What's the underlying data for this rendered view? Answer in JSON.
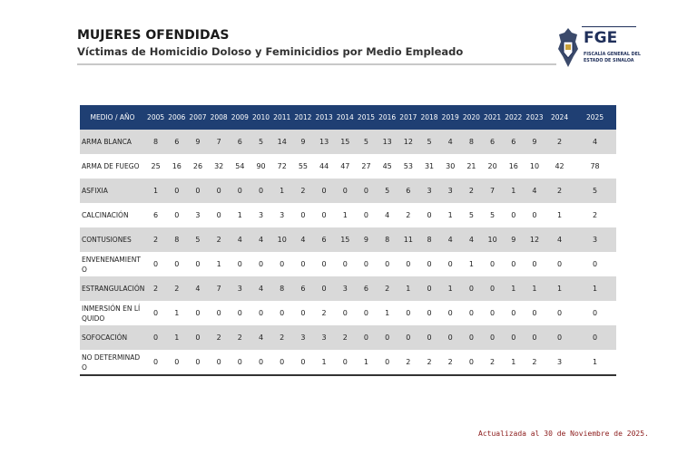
{
  "header": {
    "title": "MUJERES OFENDIDAS",
    "subtitle": "Víctimas de Homicidio Doloso y Feminicidios por Medio Empleado"
  },
  "logo": {
    "acronym": "FGE",
    "line1": "FISCALÍA GENERAL DEL",
    "line2": "ESTADO DE SINALOA"
  },
  "table": {
    "columns": [
      "MEDIO / AÑO",
      "2005",
      "2006",
      "2007",
      "2008",
      "2009",
      "2010",
      "2011",
      "2012",
      "2013",
      "2014",
      "2015",
      "2016",
      "2017",
      "2018",
      "2019",
      "2020",
      "2021",
      "2022",
      "2023",
      "2024",
      "2025"
    ],
    "rows": [
      [
        "ARMA BLANCA",
        8,
        6,
        9,
        7,
        6,
        5,
        14,
        9,
        13,
        15,
        5,
        13,
        12,
        5,
        4,
        8,
        6,
        6,
        9,
        2,
        4
      ],
      [
        "ARMA DE FUEGO",
        25,
        16,
        26,
        32,
        54,
        90,
        72,
        55,
        44,
        47,
        27,
        45,
        53,
        31,
        30,
        21,
        20,
        16,
        10,
        42,
        78
      ],
      [
        "ASFIXIA",
        1,
        0,
        0,
        0,
        0,
        0,
        1,
        2,
        0,
        0,
        0,
        5,
        6,
        3,
        3,
        2,
        7,
        1,
        4,
        2,
        5
      ],
      [
        "CALCINACIÓN",
        6,
        0,
        3,
        0,
        1,
        3,
        3,
        0,
        0,
        1,
        0,
        4,
        2,
        0,
        1,
        5,
        5,
        0,
        0,
        1,
        2
      ],
      [
        "CONTUSIONES",
        2,
        8,
        5,
        2,
        4,
        4,
        10,
        4,
        6,
        15,
        9,
        8,
        11,
        8,
        4,
        4,
        10,
        9,
        12,
        4,
        3
      ],
      [
        "ENVENENAMIENTO",
        0,
        0,
        0,
        1,
        0,
        0,
        0,
        0,
        0,
        0,
        0,
        0,
        0,
        0,
        0,
        1,
        0,
        0,
        0,
        0,
        0
      ],
      [
        "ESTRANGULACIÓN",
        2,
        2,
        4,
        7,
        3,
        4,
        8,
        6,
        0,
        3,
        6,
        2,
        1,
        0,
        1,
        0,
        0,
        1,
        1,
        1,
        1
      ],
      [
        "INMERSIÓN EN LÍQUIDO",
        0,
        1,
        0,
        0,
        0,
        0,
        0,
        0,
        2,
        0,
        0,
        1,
        0,
        0,
        0,
        0,
        0,
        0,
        0,
        0,
        0
      ],
      [
        "SOFOCACIÓN",
        0,
        1,
        0,
        2,
        2,
        4,
        2,
        3,
        3,
        2,
        0,
        0,
        0,
        0,
        0,
        0,
        0,
        0,
        0,
        0,
        0
      ],
      [
        "NO DETERMINADO",
        0,
        0,
        0,
        0,
        0,
        0,
        0,
        0,
        1,
        0,
        1,
        0,
        2,
        2,
        2,
        0,
        2,
        1,
        2,
        3,
        1
      ]
    ]
  },
  "footer": "Actualizada al 30 de Noviembre de 2025."
}
